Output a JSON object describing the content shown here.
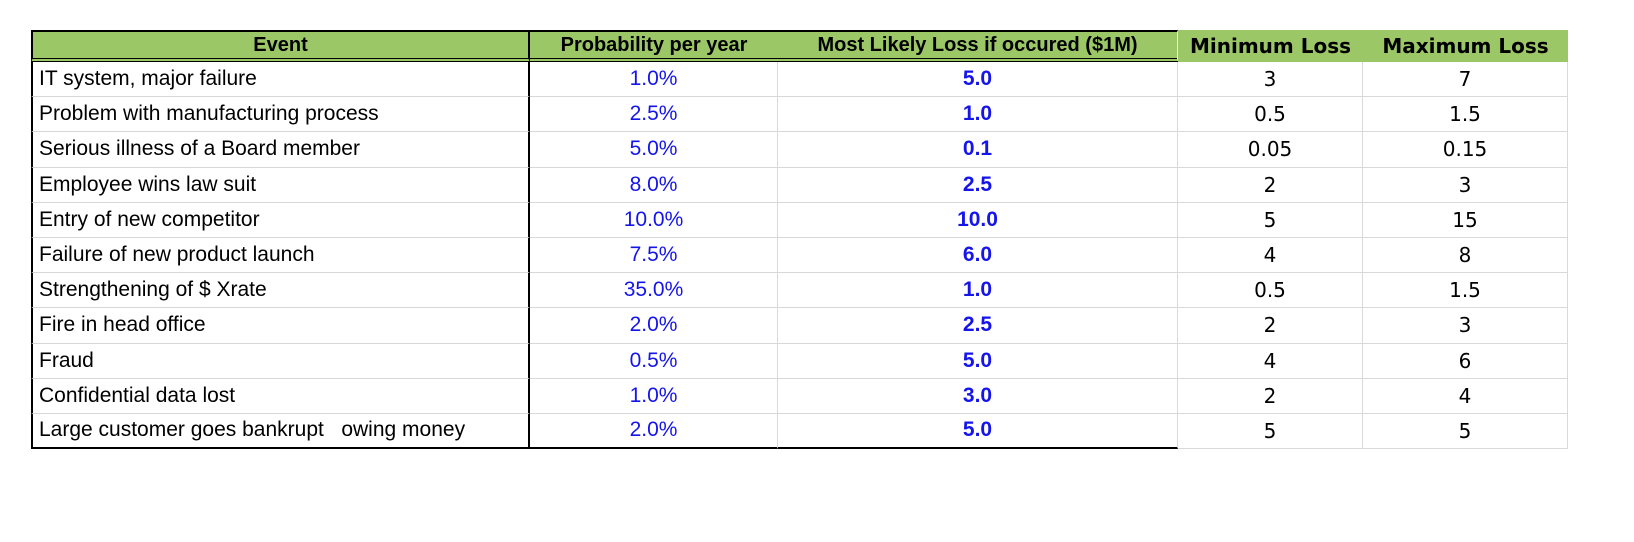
{
  "colors": {
    "header_green": "#9CC766",
    "value_blue": "#1414EB",
    "gridline_gray": "#D9D9D9",
    "border_black": "#000000"
  },
  "table": {
    "columns": [
      {
        "key": "event",
        "label": "Event"
      },
      {
        "key": "probability",
        "label": "Probability per year"
      },
      {
        "key": "most_likely",
        "label": "Most Likely Loss if occured ($1M)"
      },
      {
        "key": "min_loss",
        "label": "Minimum Loss"
      },
      {
        "key": "max_loss",
        "label": "Maximum Loss"
      }
    ],
    "rows": [
      {
        "event": "IT system, major failure",
        "probability": "1.0%",
        "most_likely": "5.0",
        "min_loss": "3",
        "max_loss": "7"
      },
      {
        "event": "Problem with manufacturing process",
        "probability": "2.5%",
        "most_likely": "1.0",
        "min_loss": "0.5",
        "max_loss": "1.5"
      },
      {
        "event": "Serious illness of a Board member",
        "probability": "5.0%",
        "most_likely": "0.1",
        "min_loss": "0.05",
        "max_loss": "0.15"
      },
      {
        "event": "Employee wins law suit",
        "probability": "8.0%",
        "most_likely": "2.5",
        "min_loss": "2",
        "max_loss": "3"
      },
      {
        "event": "Entry of new competitor",
        "probability": "10.0%",
        "most_likely": "10.0",
        "min_loss": "5",
        "max_loss": "15"
      },
      {
        "event": "Failure of new product launch",
        "probability": "7.5%",
        "most_likely": "6.0",
        "min_loss": "4",
        "max_loss": "8"
      },
      {
        "event": "Strengthening of $ Xrate",
        "probability": "35.0%",
        "most_likely": "1.0",
        "min_loss": "0.5",
        "max_loss": "1.5"
      },
      {
        "event": "Fire in head office",
        "probability": "2.0%",
        "most_likely": "2.5",
        "min_loss": "2",
        "max_loss": "3"
      },
      {
        "event": "Fraud",
        "probability": "0.5%",
        "most_likely": "5.0",
        "min_loss": "4",
        "max_loss": "6"
      },
      {
        "event": "Confidential data lost",
        "probability": "1.0%",
        "most_likely": "3.0",
        "min_loss": "2",
        "max_loss": "4"
      },
      {
        "event": "Large customer goes bankrupt   owing money",
        "probability": "2.0%",
        "most_likely": "5.0",
        "min_loss": "5",
        "max_loss": "5"
      }
    ]
  }
}
